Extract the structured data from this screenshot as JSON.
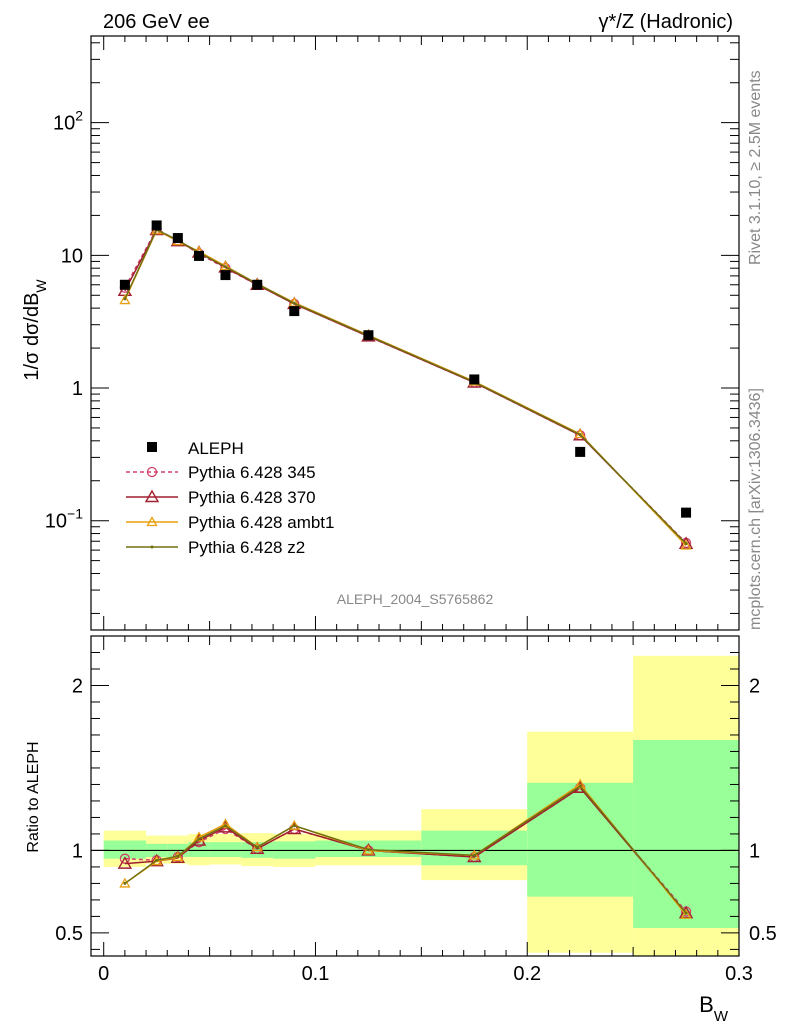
{
  "header": {
    "left": "206 GeV ee",
    "right": "γ*/Z (Hadronic)"
  },
  "side": {
    "rivet": "Rivet 3.1.10, ≥ 2.5M events",
    "mcplots": "mcplots.cern.ch [arXiv:1306.3436]"
  },
  "watermark": "ALEPH_2004_S5765862",
  "chart_data": [
    {
      "type": "line",
      "panel": "main",
      "ylabel": "1/σ  dσ/dB_W",
      "yscale": "log",
      "xlim": [
        -0.006,
        0.3
      ],
      "ylim": [
        0.015,
        450
      ],
      "yticks": [
        "10⁻¹",
        "1",
        "10",
        "10²"
      ],
      "x": [
        0.01,
        0.025,
        0.035,
        0.045,
        0.0575,
        0.0725,
        0.09,
        0.125,
        0.175,
        0.225,
        0.275
      ],
      "data": {
        "name": "ALEPH",
        "values": [
          6.0,
          16.8,
          13.5,
          9.9,
          7.1,
          6.0,
          3.8,
          2.5,
          1.16,
          0.33,
          0.115
        ]
      },
      "series": [
        {
          "name": "Pythia 6.428 345",
          "color": "#d0406a",
          "marker": "circle",
          "dash": true,
          "values": [
            5.7,
            15.8,
            12.9,
            10.3,
            8.0,
            6.0,
            4.3,
            2.45,
            1.1,
            0.44,
            0.068
          ]
        },
        {
          "name": "Pythia 6.428 370",
          "color": "#a02030",
          "marker": "triangle",
          "values": [
            5.4,
            15.5,
            12.8,
            10.5,
            8.1,
            6.0,
            4.3,
            2.45,
            1.1,
            0.44,
            0.067
          ]
        },
        {
          "name": "Pythia 6.428 ambt1",
          "color": "#e8a010",
          "marker": "triangle-small",
          "values": [
            4.6,
            15.5,
            12.8,
            10.7,
            8.3,
            6.1,
            4.4,
            2.5,
            1.12,
            0.45,
            0.065
          ]
        },
        {
          "name": "Pythia 6.428 z2",
          "color": "#707010",
          "marker": "dot",
          "values": [
            4.7,
            15.6,
            13.0,
            10.5,
            8.2,
            6.1,
            4.35,
            2.48,
            1.11,
            0.445,
            0.067
          ]
        }
      ]
    },
    {
      "type": "line",
      "panel": "ratio",
      "xlabel": "B_W",
      "ylabel": "Ratio to ALEPH",
      "xlim": [
        -0.006,
        0.3
      ],
      "ylim": [
        0.36,
        2.3
      ],
      "yticks": [
        "0.5",
        "1",
        "2"
      ],
      "xticks": [
        "0",
        "0.1",
        "0.2",
        "0.3"
      ],
      "bands": {
        "bins": [
          0.0,
          0.02,
          0.03,
          0.04,
          0.05,
          0.065,
          0.08,
          0.1,
          0.15,
          0.2,
          0.25,
          0.3
        ],
        "yellow_lo": [
          0.9,
          0.92,
          0.92,
          0.91,
          0.915,
          0.905,
          0.9,
          0.91,
          0.82,
          0.38,
          0.36
        ],
        "yellow_hi": [
          1.12,
          1.09,
          1.09,
          1.1,
          1.1,
          1.105,
          1.1,
          1.12,
          1.25,
          1.72,
          2.18
        ],
        "green_lo": [
          0.95,
          0.96,
          0.96,
          0.96,
          0.96,
          0.955,
          0.95,
          0.96,
          0.91,
          0.72,
          0.53
        ],
        "green_hi": [
          1.06,
          1.04,
          1.04,
          1.05,
          1.05,
          1.05,
          1.055,
          1.06,
          1.12,
          1.41,
          1.67
        ]
      },
      "x": [
        0.01,
        0.025,
        0.035,
        0.045,
        0.0575,
        0.0725,
        0.09,
        0.125,
        0.175,
        0.225,
        0.275
      ],
      "series": [
        {
          "name": "Pythia 6.428 345",
          "color": "#d0406a",
          "marker": "circle",
          "dash": true,
          "values": [
            0.95,
            0.94,
            0.96,
            1.05,
            1.13,
            1.01,
            1.13,
            1.0,
            0.96,
            1.38,
            0.63
          ]
        },
        {
          "name": "Pythia 6.428 370",
          "color": "#a02030",
          "marker": "triangle",
          "values": [
            0.92,
            0.935,
            0.955,
            1.06,
            1.14,
            1.01,
            1.13,
            1.0,
            0.96,
            1.38,
            0.62
          ]
        },
        {
          "name": "Pythia 6.428 ambt1",
          "color": "#e8a010",
          "marker": "triangle-small",
          "values": [
            0.8,
            0.935,
            0.96,
            1.08,
            1.16,
            1.02,
            1.15,
            1.0,
            0.97,
            1.4,
            0.61
          ]
        },
        {
          "name": "Pythia 6.428 z2",
          "color": "#707010",
          "marker": "dot",
          "values": [
            0.8,
            0.94,
            0.965,
            1.07,
            1.15,
            1.02,
            1.15,
            1.005,
            0.97,
            1.39,
            0.62
          ]
        }
      ]
    }
  ]
}
